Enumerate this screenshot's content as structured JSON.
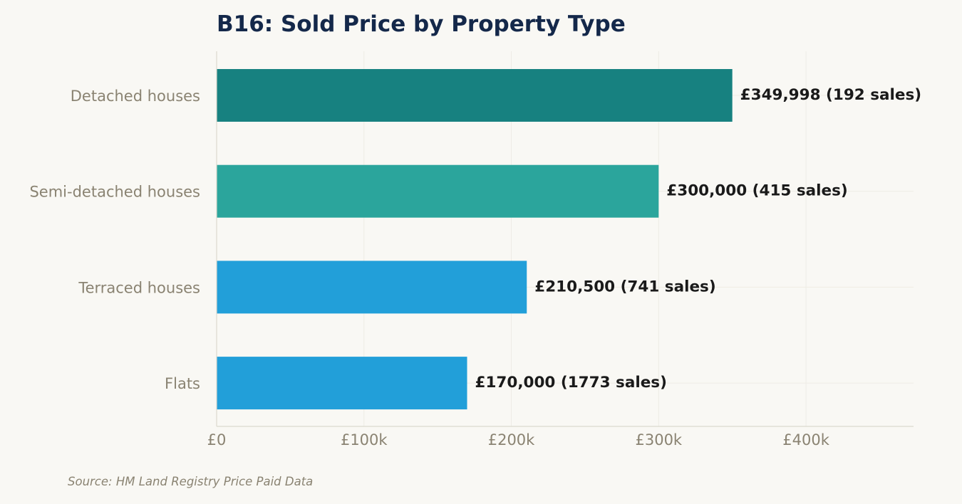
{
  "chart_data": {
    "type": "bar",
    "orientation": "horizontal",
    "title": "B16: Sold Price by Property Type",
    "categories": [
      "Detached houses",
      "Semi-detached houses",
      "Terraced houses",
      "Flats"
    ],
    "values": [
      349998,
      300000,
      210500,
      170000
    ],
    "sales": [
      192,
      415,
      741,
      1773
    ],
    "value_labels": [
      "£349,998  (192 sales)",
      "£300,000  (415 sales)",
      "£210,500  (741 sales)",
      "£170,000  (1773 sales)"
    ],
    "bar_colors": [
      "#178180",
      "#2ba59c",
      "#229fd9",
      "#229fd9"
    ],
    "xlim": [
      0,
      473000
    ],
    "xticks": [
      0,
      100000,
      200000,
      300000,
      400000
    ],
    "xtick_labels": [
      "£0",
      "£100k",
      "£200k",
      "£300k",
      "£400k"
    ],
    "xlabel": "",
    "ylabel": "",
    "grid": true,
    "legend": "none"
  },
  "source": "Source: HM Land Registry Price Paid Data",
  "colors": {
    "background": "#f9f8f4",
    "title": "#14284a",
    "axis_text": "#8a8372",
    "value_text": "#1a1a1a",
    "grid": "#eeece5",
    "axis_line": "#dcd9ce"
  }
}
